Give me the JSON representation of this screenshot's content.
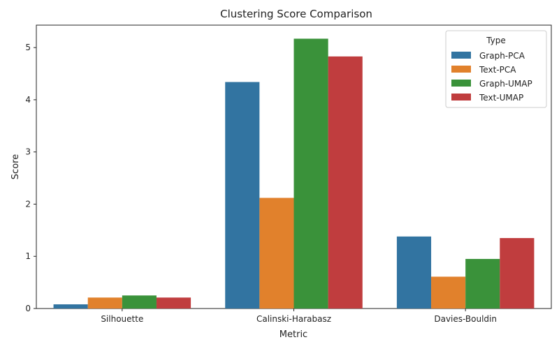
{
  "chart_data": {
    "type": "bar",
    "title": "Clustering Score Comparison",
    "xlabel": "Metric",
    "ylabel": "Score",
    "categories": [
      "Silhouette",
      "Calinski-Harabasz",
      "Davies-Bouldin"
    ],
    "ylim": [
      0,
      5.43
    ],
    "yticks": [
      0,
      1,
      2,
      3,
      4,
      5
    ],
    "grid": false,
    "legend": {
      "title": "Type",
      "placement": "top-right"
    },
    "series": [
      {
        "name": "Graph-PCA",
        "color": "#3274a1",
        "values": [
          0.08,
          4.34,
          1.38
        ]
      },
      {
        "name": "Text-PCA",
        "color": "#e1812c",
        "values": [
          0.21,
          2.12,
          0.61
        ]
      },
      {
        "name": "Graph-UMAP",
        "color": "#3a923a",
        "values": [
          0.25,
          5.17,
          0.95
        ]
      },
      {
        "name": "Text-UMAP",
        "color": "#c03d3e",
        "values": [
          0.21,
          4.83,
          1.35
        ]
      }
    ]
  }
}
